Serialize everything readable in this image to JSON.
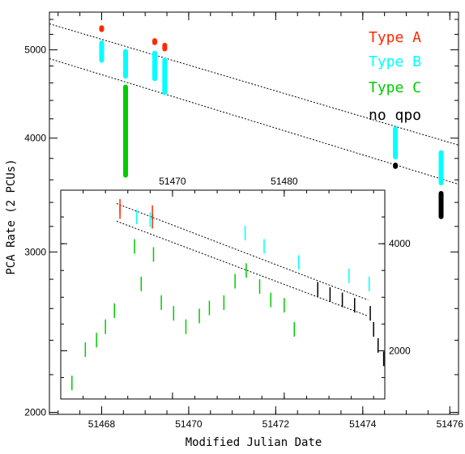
{
  "chart_data": [
    {
      "type": "scatter",
      "title": "",
      "xlabel": "Modified Julian Date",
      "ylabel": "PCA Rate (2 PCUs)",
      "x_tick_labels": [
        "51468",
        "51470",
        "51472",
        "51474",
        "51476"
      ],
      "y_tick_labels": [
        "2000",
        "3000",
        "4000",
        "5000"
      ],
      "ylim": [
        1990,
        5500
      ],
      "yscale": "log",
      "xlim": [
        51466.8,
        51476.2
      ],
      "legend_placement": "top-right",
      "series": [
        {
          "name": "Type A",
          "color": "#ff2a00",
          "points": [
            [
              51468.0,
              5230
            ],
            [
              51468.0,
              5320
            ],
            [
              51469.22,
              5060
            ],
            [
              51469.22,
              5150
            ],
            [
              51469.45,
              4980
            ],
            [
              51469.45,
              5090
            ]
          ]
        },
        {
          "name": "Type B",
          "color": "#00ffff",
          "points": [
            [
              51468.0,
              4840
            ],
            [
              51468.0,
              5120
            ],
            [
              51468.55,
              4650
            ],
            [
              51468.55,
              5010
            ],
            [
              51469.22,
              4620
            ],
            [
              51469.22,
              4990
            ],
            [
              51469.45,
              4460
            ],
            [
              51469.45,
              4900
            ],
            [
              51474.75,
              3790
            ],
            [
              51474.75,
              4120
            ],
            [
              51475.8,
              3550
            ],
            [
              51475.8,
              3880
            ]
          ]
        },
        {
          "name": "Type C",
          "color": "#00cc00",
          "points": [
            [
              51468.55,
              3620
            ],
            [
              51468.55,
              4580
            ]
          ]
        },
        {
          "name": "no qpo",
          "color": "#000000",
          "points": [
            [
              51474.75,
              3700
            ],
            [
              51474.75,
              3760
            ],
            [
              51475.8,
              3260
            ],
            [
              51475.8,
              3500
            ]
          ]
        }
      ],
      "trend_lines": [
        {
          "x": [
            51466.8,
            51476.2
          ],
          "y": [
            5340,
            3930
          ]
        },
        {
          "x": [
            51466.8,
            51476.2
          ],
          "y": [
            4890,
            3560
          ]
        }
      ]
    },
    {
      "type": "scatter",
      "title": "",
      "xlabel": "",
      "ylabel": "",
      "x_tick_labels": [
        "51470",
        "51480"
      ],
      "y_tick_labels": [
        "2000",
        "4000"
      ],
      "xlim": [
        51460,
        51489
      ],
      "ylim": [
        1100,
        5000
      ],
      "series": [
        {
          "name": "Type A",
          "color": "#ff2a00",
          "points": [
            [
              51465.3,
              4700
            ],
            [
              51465.3,
              4600
            ],
            [
              51468.2,
              4580
            ],
            [
              51468.2,
              4420
            ]
          ]
        },
        {
          "name": "Type B",
          "color": "#00ffff",
          "points": [
            [
              51466.8,
              4500
            ],
            [
              51468.0,
              4450
            ],
            [
              51476.5,
              4200
            ],
            [
              51478.2,
              3950
            ],
            [
              51481.3,
              3650
            ],
            [
              51485.8,
              3400
            ],
            [
              51487.6,
              3250
            ]
          ]
        },
        {
          "name": "Type C",
          "color": "#00cc00",
          "points": [
            [
              51461.0,
              1400
            ],
            [
              51462.2,
              2020
            ],
            [
              51463.2,
              2200
            ],
            [
              51464.0,
              2450
            ],
            [
              51464.8,
              2750
            ],
            [
              51466.6,
              3950
            ],
            [
              51467.2,
              3250
            ],
            [
              51468.3,
              3800
            ],
            [
              51469.0,
              2900
            ],
            [
              51470.1,
              2700
            ],
            [
              51471.2,
              2450
            ],
            [
              51472.4,
              2650
            ],
            [
              51473.3,
              2800
            ],
            [
              51474.6,
              2900
            ],
            [
              51475.6,
              3300
            ],
            [
              51476.6,
              3500
            ],
            [
              51477.8,
              3200
            ],
            [
              51478.8,
              2950
            ],
            [
              51480.0,
              2850
            ],
            [
              51480.9,
              2400
            ]
          ]
        },
        {
          "name": "no qpo",
          "color": "#000000",
          "points": [
            [
              51483.0,
              3150
            ],
            [
              51484.1,
              3050
            ],
            [
              51485.2,
              2950
            ],
            [
              51486.3,
              2850
            ],
            [
              51487.7,
              2700
            ],
            [
              51488.0,
              2400
            ],
            [
              51488.4,
              2100
            ],
            [
              51488.9,
              1850
            ]
          ]
        }
      ],
      "trend_lines": [
        {
          "x": [
            51465.0,
            51487.5
          ],
          "y": [
            4750,
            2950
          ]
        },
        {
          "x": [
            51465.0,
            51487.5
          ],
          "y": [
            4420,
            2650
          ]
        }
      ]
    }
  ]
}
